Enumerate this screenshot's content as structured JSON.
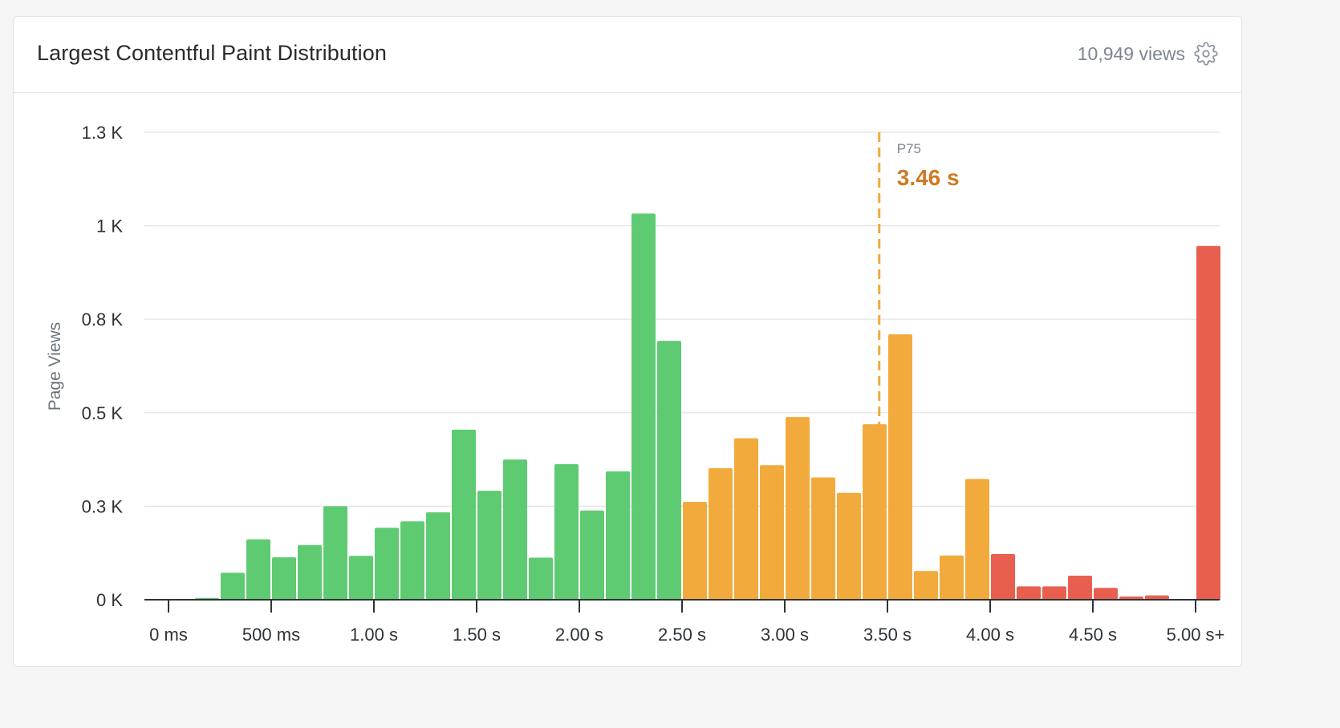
{
  "card": {
    "title": "Largest Contentful Paint Distribution",
    "views": "10,949 views",
    "settings_icon": "gear-icon"
  },
  "colors": {
    "good": "#5ecb72",
    "needs_improvement": "#f2aa3c",
    "poor": "#e95f4f",
    "p75_line": "#f2aa3c",
    "p75_value": "#cf7a22",
    "grid": "#e2e2e2"
  },
  "chart_data": {
    "type": "bar",
    "ylabel": "Page Views",
    "xlabel": "",
    "ylim": [
      0,
      1.3
    ],
    "y_unit": "K",
    "grid": true,
    "y_ticks": [
      {
        "value": 0,
        "label": "0 K"
      },
      {
        "value": 0.26,
        "label": "0.3 K"
      },
      {
        "value": 0.52,
        "label": "0.5 K"
      },
      {
        "value": 0.78,
        "label": "0.8 K"
      },
      {
        "value": 1.04,
        "label": "1 K"
      },
      {
        "value": 1.3,
        "label": "1.3 K"
      }
    ],
    "x_ticks": [
      {
        "value": 0,
        "label": "0 ms"
      },
      {
        "value": 0.5,
        "label": "500 ms"
      },
      {
        "value": 1.0,
        "label": "1.00 s"
      },
      {
        "value": 1.5,
        "label": "1.50 s"
      },
      {
        "value": 2.0,
        "label": "2.00 s"
      },
      {
        "value": 2.5,
        "label": "2.50 s"
      },
      {
        "value": 3.0,
        "label": "3.00 s"
      },
      {
        "value": 3.5,
        "label": "3.50 s"
      },
      {
        "value": 4.0,
        "label": "4.00 s"
      },
      {
        "value": 4.5,
        "label": "4.50 s"
      },
      {
        "value": 5.0,
        "label": "5.00 s+"
      }
    ],
    "x_unit": "s",
    "bin_width": 0.125,
    "bins": [
      {
        "start": 0.125,
        "value": 0.005,
        "rating": "good"
      },
      {
        "start": 0.25,
        "value": 0.075,
        "rating": "good"
      },
      {
        "start": 0.375,
        "value": 0.168,
        "rating": "good"
      },
      {
        "start": 0.5,
        "value": 0.118,
        "rating": "good"
      },
      {
        "start": 0.625,
        "value": 0.152,
        "rating": "good"
      },
      {
        "start": 0.75,
        "value": 0.26,
        "rating": "good"
      },
      {
        "start": 0.875,
        "value": 0.122,
        "rating": "good"
      },
      {
        "start": 1.0,
        "value": 0.2,
        "rating": "good"
      },
      {
        "start": 1.125,
        "value": 0.218,
        "rating": "good"
      },
      {
        "start": 1.25,
        "value": 0.243,
        "rating": "good"
      },
      {
        "start": 1.375,
        "value": 0.473,
        "rating": "good"
      },
      {
        "start": 1.5,
        "value": 0.303,
        "rating": "good"
      },
      {
        "start": 1.625,
        "value": 0.39,
        "rating": "good"
      },
      {
        "start": 1.75,
        "value": 0.117,
        "rating": "good"
      },
      {
        "start": 1.875,
        "value": 0.377,
        "rating": "good"
      },
      {
        "start": 2.0,
        "value": 0.248,
        "rating": "good"
      },
      {
        "start": 2.125,
        "value": 0.357,
        "rating": "good"
      },
      {
        "start": 2.25,
        "value": 1.074,
        "rating": "good"
      },
      {
        "start": 2.375,
        "value": 0.72,
        "rating": "good"
      },
      {
        "start": 2.5,
        "value": 0.272,
        "rating": "needs_improvement"
      },
      {
        "start": 2.625,
        "value": 0.366,
        "rating": "needs_improvement"
      },
      {
        "start": 2.75,
        "value": 0.449,
        "rating": "needs_improvement"
      },
      {
        "start": 2.875,
        "value": 0.374,
        "rating": "needs_improvement"
      },
      {
        "start": 3.0,
        "value": 0.508,
        "rating": "needs_improvement"
      },
      {
        "start": 3.125,
        "value": 0.34,
        "rating": "needs_improvement"
      },
      {
        "start": 3.25,
        "value": 0.297,
        "rating": "needs_improvement"
      },
      {
        "start": 3.375,
        "value": 0.488,
        "rating": "needs_improvement"
      },
      {
        "start": 3.5,
        "value": 0.738,
        "rating": "needs_improvement"
      },
      {
        "start": 3.625,
        "value": 0.08,
        "rating": "needs_improvement"
      },
      {
        "start": 3.75,
        "value": 0.123,
        "rating": "needs_improvement"
      },
      {
        "start": 3.875,
        "value": 0.336,
        "rating": "needs_improvement"
      },
      {
        "start": 4.0,
        "value": 0.127,
        "rating": "poor"
      },
      {
        "start": 4.125,
        "value": 0.037,
        "rating": "poor"
      },
      {
        "start": 4.25,
        "value": 0.037,
        "rating": "poor"
      },
      {
        "start": 4.375,
        "value": 0.067,
        "rating": "poor"
      },
      {
        "start": 4.5,
        "value": 0.033,
        "rating": "poor"
      },
      {
        "start": 4.625,
        "value": 0.009,
        "rating": "poor"
      },
      {
        "start": 4.75,
        "value": 0.012,
        "rating": "poor"
      },
      {
        "start": 5.0,
        "value": 0.984,
        "rating": "poor"
      }
    ],
    "p75": {
      "label": "P75",
      "value_label": "3.46 s",
      "x": 3.46
    }
  }
}
